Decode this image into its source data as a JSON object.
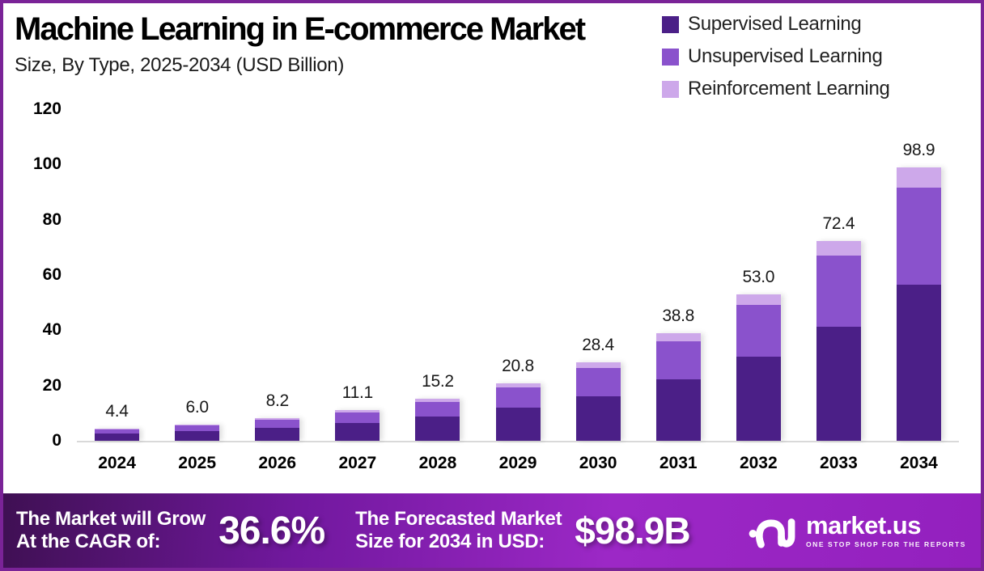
{
  "header": {
    "title": "Machine Learning in E-commerce Market",
    "subtitle": "Size, By Type, 2025-2034 (USD Billion)"
  },
  "chart_data": {
    "type": "bar",
    "stacked": true,
    "title": "Machine Learning in E-commerce Market Size, By Type, 2025-2034 (USD Billion)",
    "categories": [
      "2024",
      "2025",
      "2026",
      "2027",
      "2028",
      "2029",
      "2030",
      "2031",
      "2032",
      "2033",
      "2034"
    ],
    "series": [
      {
        "name": "Supervised Learning",
        "color": "#4B1F87",
        "values": [
          2.5,
          3.4,
          4.7,
          6.3,
          8.7,
          11.9,
          16.2,
          22.2,
          30.3,
          41.4,
          56.5
        ]
      },
      {
        "name": "Unsupervised Learning",
        "color": "#8A52CC",
        "values": [
          1.6,
          2.1,
          2.9,
          3.9,
          5.4,
          7.3,
          10.1,
          13.7,
          18.8,
          25.6,
          35.1
        ]
      },
      {
        "name": "Reinforcement Learning",
        "color": "#CDA8EA",
        "values": [
          0.3,
          0.5,
          0.6,
          0.9,
          1.1,
          1.6,
          2.1,
          2.9,
          3.9,
          5.4,
          7.3
        ]
      }
    ],
    "totals": [
      4.4,
      6.0,
      8.2,
      11.1,
      15.2,
      20.8,
      28.4,
      38.8,
      53.0,
      72.4,
      98.9
    ],
    "totals_display": [
      "4.4",
      "6.0",
      "8.2",
      "11.1",
      "15.2",
      "20.8",
      "28.4",
      "38.8",
      "53.0",
      "72.4",
      "98.9"
    ],
    "yticks": [
      0,
      20,
      40,
      60,
      80,
      100,
      120
    ],
    "ylim": [
      0,
      120
    ],
    "grid": false,
    "legend_position": "top-right"
  },
  "footer": {
    "cagr_label_line1": "The Market will Grow",
    "cagr_label_line2": "At the CAGR of:",
    "cagr_value": "36.6%",
    "forecast_label_line1": "The Forecasted Market",
    "forecast_label_line2": "Size for 2034 in USD:",
    "forecast_value": "$98.9B",
    "brand_name": "market.us",
    "brand_tagline": "ONE STOP SHOP FOR THE REPORTS"
  },
  "colors": {
    "frame_border": "#7A2397",
    "axis_line": "#D9D9D9",
    "footer_gradient": [
      "#3F1053",
      "#71189E",
      "#9C28C6",
      "#9320BE"
    ]
  }
}
